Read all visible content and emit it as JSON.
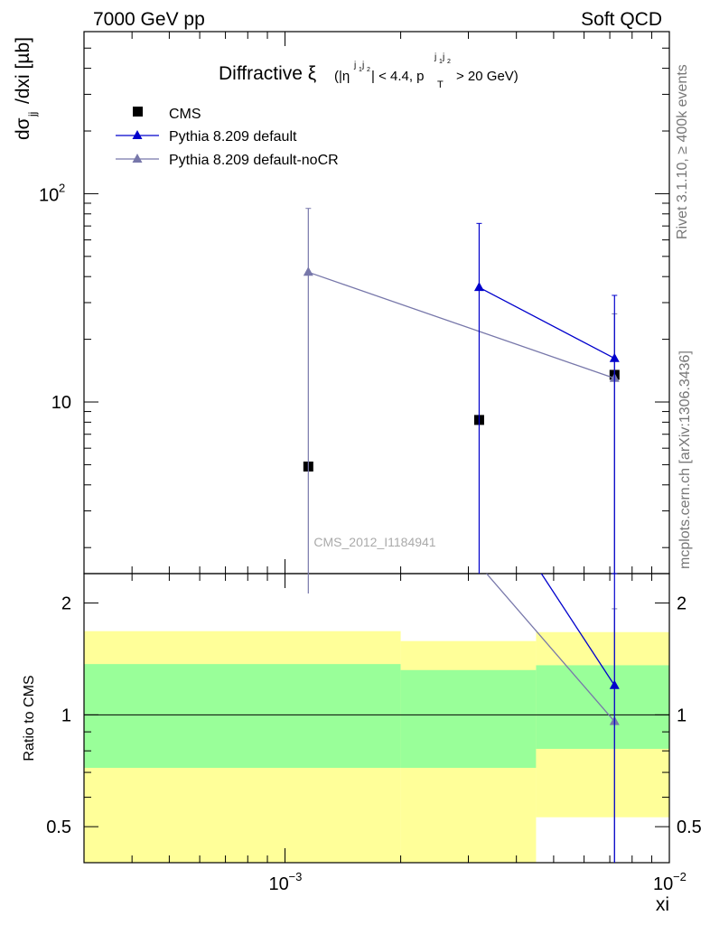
{
  "header": {
    "energy": "7000 GeV pp",
    "category": "Soft QCD"
  },
  "side_labels": {
    "rivet": "Rivet 3.1.10, ≥ 400k events",
    "source": "mcplots.cern.ch [arXiv:1306.3436]"
  },
  "watermark": "CMS_2012_I1184941",
  "chart_data": {
    "type": "scatter",
    "title": "Diffractive ξ (|η^{j1j2}| < 4.4, p_T^{j1j2} > 20 GeV)",
    "title_main": "Diffractive ξ",
    "title_cut": "(|η",
    "title_sup1": "j",
    "title_sub1a": "1",
    "title_sup2": "j",
    "title_sub2a": "2",
    "title_cut2": "| < 4.4, p",
    "title_sub_T": "T",
    "title_cut3": "> 20 GeV)",
    "xlabel": "xi",
    "ylabel": "dσjj/dxi [µb]",
    "ylabel_main": "dσ",
    "ylabel_sub": "jj",
    "ylabel_rest": "/dxi [µb]",
    "ratio_ylabel": "Ratio to CMS",
    "x_scale": "log",
    "y_scale": "log",
    "xlim": [
      0.0003,
      0.01
    ],
    "ylim": [
      1.5,
      600
    ],
    "ratio_ylim": [
      0.4,
      2.4
    ],
    "x_bins": [
      [
        0.0003,
        0.002
      ],
      [
        0.002,
        0.0045
      ],
      [
        0.0045,
        0.01
      ]
    ],
    "x_centers": [
      0.00115,
      0.0032,
      0.0072
    ],
    "x_tick_labels": [
      "10^-3",
      "10^-2"
    ],
    "y_tick_labels": [
      "10",
      "10^2"
    ],
    "ratio_tick_labels": [
      "0.5",
      "1",
      "2"
    ],
    "legend_position": "top-left",
    "series": [
      {
        "name": "CMS",
        "color": "#000000",
        "marker": "square",
        "values": [
          4.9,
          8.2,
          13.5
        ]
      },
      {
        "name": "Pythia 8.209 default",
        "color": "#0000cc",
        "marker": "triangle",
        "points": [
          {
            "x": 0.0032,
            "y": 35.5,
            "ylo": 0.1,
            "yhi": 72
          },
          {
            "x": 0.0072,
            "y": 16.2,
            "ylo": 0.1,
            "yhi": 32.5
          }
        ],
        "ratio": [
          {
            "x": 0.0072,
            "y": 1.2,
            "ylo": 0.1,
            "yhi": 2.4
          }
        ]
      },
      {
        "name": "Pythia 8.209 default-noCR",
        "color": "#7777aa",
        "marker": "triangle",
        "points": [
          {
            "x": 0.00115,
            "y": 42,
            "ylo": 0.1,
            "yhi": 85
          },
          {
            "x": 0.0072,
            "y": 13.0,
            "ylo": 0.1,
            "yhi": 26.5
          }
        ],
        "ratio": [
          {
            "x": 0.00115,
            "y": 8.6
          },
          {
            "x": 0.0072,
            "y": 0.96,
            "ylo": 0.1,
            "yhi": 1.93
          }
        ]
      }
    ],
    "ratio_bands": [
      {
        "x0": 0.0003,
        "x1": 0.002,
        "green": [
          0.72,
          1.37
        ],
        "yellow": [
          0.3,
          1.68
        ]
      },
      {
        "x0": 0.002,
        "x1": 0.0045,
        "green": [
          0.72,
          1.32
        ],
        "yellow": [
          0.3,
          1.58
        ]
      },
      {
        "x0": 0.0045,
        "x1": 0.01,
        "green": [
          0.81,
          1.36
        ],
        "yellow": [
          0.53,
          1.67
        ]
      }
    ]
  }
}
